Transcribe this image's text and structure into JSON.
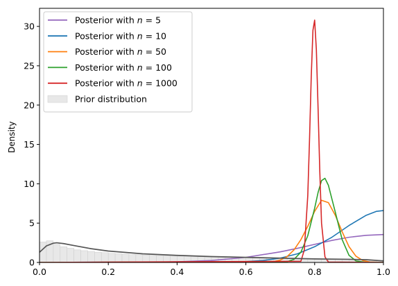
{
  "chart_data": {
    "type": "line",
    "title": "",
    "xlabel": "",
    "ylabel": "Density",
    "xlim": [
      0,
      1
    ],
    "ylim": [
      0,
      32.3
    ],
    "grid": false,
    "legend_position": "top-left",
    "x_ticks": [
      "0.0",
      "0.2",
      "0.4",
      "0.6",
      "0.8",
      "1.0"
    ],
    "y_ticks": [
      "0",
      "5",
      "10",
      "15",
      "20",
      "25",
      "30"
    ],
    "series": [
      {
        "name": "Posterior with",
        "n_label": "5",
        "color": "#9467bd",
        "x": [
          0.0,
          0.3,
          0.4,
          0.5,
          0.6,
          0.7,
          0.75,
          0.8,
          0.85,
          0.9,
          0.95,
          1.0
        ],
        "y": [
          0.0,
          0.02,
          0.08,
          0.25,
          0.65,
          1.35,
          1.8,
          2.3,
          2.8,
          3.2,
          3.45,
          3.55
        ]
      },
      {
        "name": "Posterior with",
        "n_label": "10",
        "color": "#1f77b4",
        "x": [
          0.0,
          0.6,
          0.65,
          0.7,
          0.75,
          0.8,
          0.85,
          0.9,
          0.95,
          0.98,
          1.0
        ],
        "y": [
          0.0,
          0.1,
          0.25,
          0.55,
          1.1,
          2.0,
          3.2,
          4.7,
          6.0,
          6.5,
          6.6
        ]
      },
      {
        "name": "Posterior with",
        "n_label": "50",
        "color": "#ff7f0e",
        "x": [
          0.0,
          0.68,
          0.7,
          0.72,
          0.74,
          0.76,
          0.78,
          0.8,
          0.82,
          0.84,
          0.86,
          0.88,
          0.9,
          0.92,
          0.94,
          0.96,
          1.0
        ],
        "y": [
          0.0,
          0.1,
          0.3,
          0.75,
          1.6,
          2.9,
          4.6,
          6.5,
          7.9,
          7.6,
          6.0,
          3.9,
          2.0,
          0.8,
          0.25,
          0.05,
          0.0
        ]
      },
      {
        "name": "Posterior with",
        "n_label": "100",
        "color": "#2ca02c",
        "x": [
          0.0,
          0.72,
          0.74,
          0.76,
          0.78,
          0.8,
          0.81,
          0.82,
          0.83,
          0.84,
          0.86,
          0.88,
          0.9,
          0.92,
          0.95,
          1.0
        ],
        "y": [
          0.0,
          0.1,
          0.4,
          1.3,
          3.4,
          6.9,
          8.9,
          10.4,
          10.7,
          9.8,
          6.4,
          2.9,
          0.9,
          0.2,
          0.0,
          0.0
        ]
      },
      {
        "name": "Posterior with",
        "n_label": "1000",
        "color": "#d62728",
        "x": [
          0.0,
          0.76,
          0.77,
          0.78,
          0.785,
          0.79,
          0.795,
          0.8,
          0.805,
          0.81,
          0.815,
          0.82,
          0.83,
          0.84,
          1.0
        ],
        "y": [
          0.0,
          0.15,
          1.6,
          8.5,
          15.5,
          23.5,
          29.5,
          30.8,
          27.0,
          19.5,
          11.5,
          5.0,
          0.7,
          0.05,
          0.0
        ]
      }
    ],
    "prior": {
      "name": "Prior distribution",
      "curve_color": "#555555",
      "fill_color": "#e8e8e8",
      "x": [
        0.0,
        0.02,
        0.04,
        0.05,
        0.07,
        0.1,
        0.15,
        0.2,
        0.3,
        0.4,
        0.5,
        0.6,
        0.7,
        0.8,
        0.9,
        0.95,
        1.0
      ],
      "y": [
        1.3,
        2.1,
        2.45,
        2.5,
        2.4,
        2.15,
        1.75,
        1.45,
        1.1,
        0.9,
        0.75,
        0.65,
        0.55,
        0.45,
        0.4,
        0.35,
        0.2
      ],
      "hist_bins": 50,
      "hist_bars": [
        2.6,
        2.75,
        2.3,
        2.0,
        1.8,
        1.6,
        1.5,
        1.4,
        1.3,
        1.25,
        1.15,
        1.1,
        1.05,
        1.0,
        0.98,
        0.95,
        0.9,
        0.88,
        0.85,
        0.82,
        0.8,
        0.78,
        0.75,
        0.73,
        0.7,
        0.7,
        0.68,
        0.66,
        0.65,
        0.62,
        0.6,
        0.6,
        0.58,
        0.56,
        0.55,
        0.52,
        0.5,
        0.5,
        0.48,
        0.46,
        0.45,
        0.44,
        0.42,
        0.42,
        0.4,
        0.4,
        0.38,
        0.36,
        0.3,
        0.25
      ]
    }
  }
}
